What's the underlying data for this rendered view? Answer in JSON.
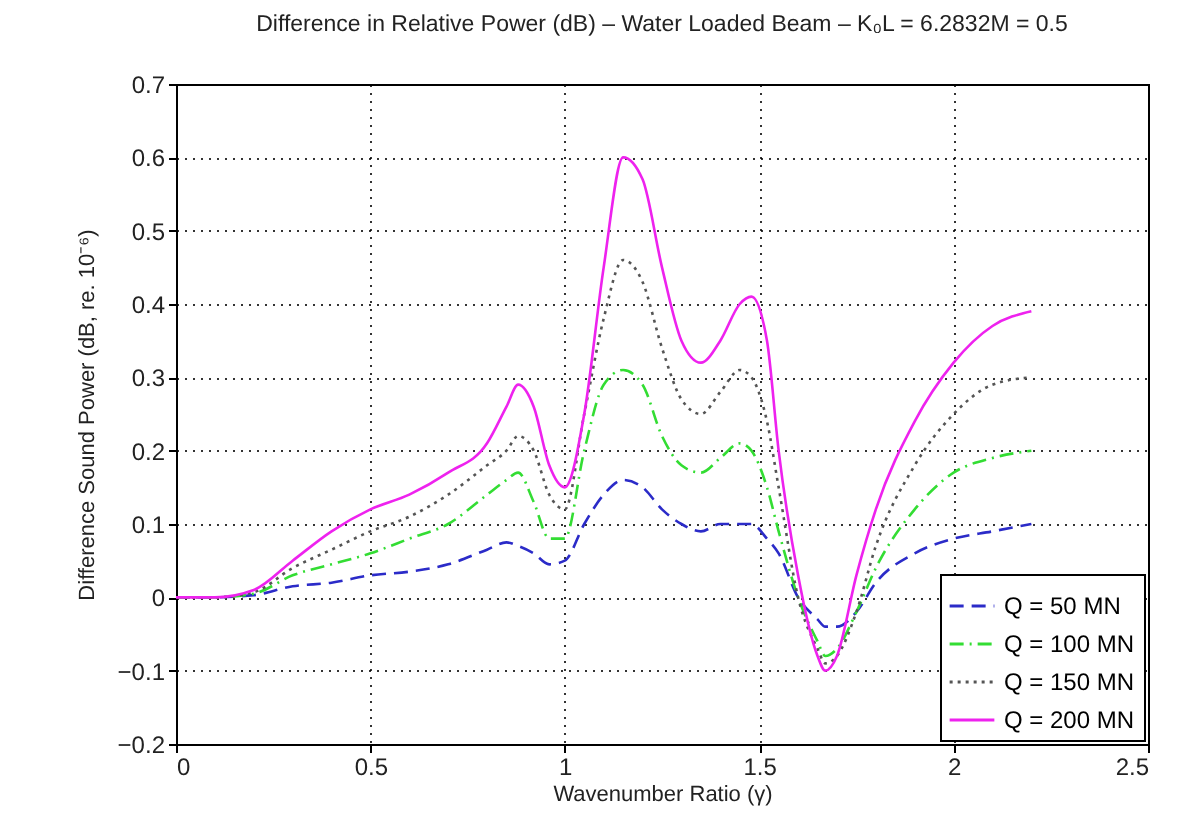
{
  "chart_data": {
    "type": "line",
    "title": "Difference in Relative Power (dB) – Water Loaded Beam – K₀L = 6.2832M = 0.5",
    "xlabel": "Wavenumber Ratio (γ)",
    "ylabel": "Difference Sound Power (dB, re. 10⁻⁶)",
    "x": [
      0,
      0.1,
      0.2,
      0.3,
      0.4,
      0.5,
      0.6,
      0.7,
      0.8,
      0.85,
      0.88,
      0.92,
      0.96,
      1.0,
      1.05,
      1.1,
      1.15,
      1.2,
      1.25,
      1.3,
      1.35,
      1.4,
      1.45,
      1.48,
      1.52,
      1.55,
      1.6,
      1.65,
      1.67,
      1.7,
      1.75,
      1.8,
      1.9,
      2.0,
      2.1,
      2.2
    ],
    "series": [
      {
        "name": "Q = 50 MN",
        "color": "#2b2bc8",
        "line_style": "dashed",
        "values": [
          0,
          0,
          0.003,
          0.015,
          0.02,
          0.03,
          0.035,
          0.045,
          0.065,
          0.075,
          0.07,
          0.06,
          0.045,
          0.05,
          0.1,
          0.14,
          0.16,
          0.15,
          0.12,
          0.1,
          0.09,
          0.1,
          0.1,
          0.1,
          0.08,
          0.06,
          0.0,
          -0.03,
          -0.04,
          -0.04,
          -0.02,
          0.02,
          0.06,
          0.08,
          0.09,
          0.1
        ]
      },
      {
        "name": "Q = 100 MN",
        "color": "#33dd33",
        "line_style": "dashed",
        "values": [
          0,
          0,
          0.005,
          0.03,
          0.045,
          0.06,
          0.08,
          0.1,
          0.14,
          0.16,
          0.17,
          0.13,
          0.08,
          0.08,
          0.2,
          0.29,
          0.31,
          0.29,
          0.22,
          0.18,
          0.17,
          0.19,
          0.21,
          0.2,
          0.15,
          0.09,
          0.0,
          -0.06,
          -0.08,
          -0.07,
          -0.02,
          0.04,
          0.12,
          0.17,
          0.19,
          0.2
        ]
      },
      {
        "name": "Q = 150 MN",
        "color": "#555555",
        "line_style": "dotted",
        "values": [
          0,
          0,
          0.007,
          0.04,
          0.065,
          0.09,
          0.11,
          0.14,
          0.18,
          0.2,
          0.22,
          0.2,
          0.14,
          0.12,
          0.25,
          0.38,
          0.46,
          0.43,
          0.34,
          0.27,
          0.25,
          0.28,
          0.31,
          0.3,
          0.24,
          0.15,
          0.0,
          -0.07,
          -0.09,
          -0.08,
          -0.02,
          0.07,
          0.18,
          0.25,
          0.29,
          0.3
        ]
      },
      {
        "name": "Q = 200 MN",
        "color": "#ee22ee",
        "line_style": "solid",
        "values": [
          0,
          0,
          0.01,
          0.05,
          0.09,
          0.12,
          0.14,
          0.17,
          0.21,
          0.26,
          0.29,
          0.26,
          0.18,
          0.15,
          0.25,
          0.45,
          0.6,
          0.57,
          0.45,
          0.35,
          0.32,
          0.35,
          0.4,
          0.41,
          0.35,
          0.2,
          0.03,
          -0.08,
          -0.1,
          -0.08,
          0.03,
          0.12,
          0.24,
          0.32,
          0.37,
          0.39
        ]
      }
    ],
    "xlim": [
      0,
      2.5
    ],
    "xticks": [
      0,
      0.5,
      1,
      1.5,
      2,
      2.5
    ],
    "ylim": [
      -0.2,
      0.7
    ],
    "yticks": [
      -0.2,
      -0.1,
      0,
      0.1,
      0.2,
      0.3,
      0.4,
      0.5,
      0.6,
      0.7
    ],
    "grid": true,
    "legend": "bottom right"
  }
}
